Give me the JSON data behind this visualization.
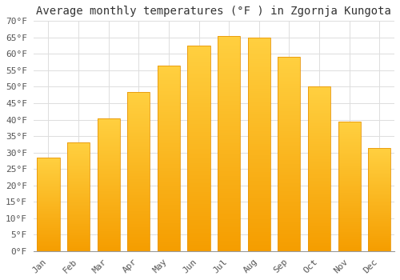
{
  "title": "Average monthly temperatures (°F ) in Zgornja Kungota",
  "months": [
    "Jan",
    "Feb",
    "Mar",
    "Apr",
    "May",
    "Jun",
    "Jul",
    "Aug",
    "Sep",
    "Oct",
    "Nov",
    "Dec"
  ],
  "values": [
    28.5,
    33.0,
    40.5,
    48.5,
    56.5,
    62.5,
    65.5,
    65.0,
    59.0,
    50.0,
    39.5,
    31.5
  ],
  "bar_color_top": "#FFC200",
  "bar_color_bottom": "#F5A800",
  "background_color": "#FFFFFF",
  "grid_color": "#DDDDDD",
  "title_fontsize": 10,
  "tick_fontsize": 8,
  "ylim": [
    0,
    70
  ],
  "yticks": [
    0,
    5,
    10,
    15,
    20,
    25,
    30,
    35,
    40,
    45,
    50,
    55,
    60,
    65,
    70
  ],
  "ylabel_format": "°F",
  "bar_width": 0.75,
  "figsize": [
    5.0,
    3.5
  ],
  "dpi": 100
}
